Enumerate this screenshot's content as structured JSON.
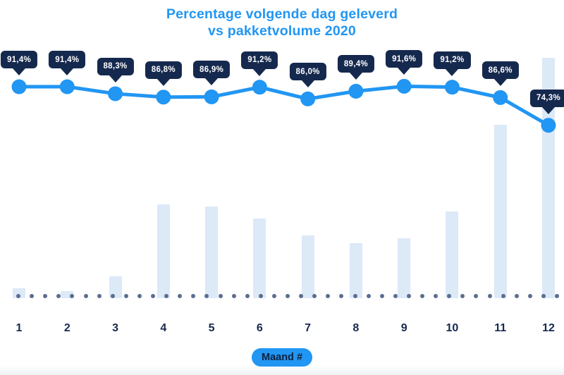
{
  "page": {
    "title_line1": "Percentage volgende dag geleverd",
    "title_line2": "vs pakketvolume 2020"
  },
  "x_axis": {
    "badge_label": "Maand #",
    "tick_labels": [
      "1",
      "2",
      "3",
      "4",
      "5",
      "6",
      "7",
      "8",
      "9",
      "10",
      "11",
      "12"
    ]
  },
  "chart_data": {
    "type": "line+bar combo",
    "title": "Percentage volgende dag geleverd vs pakketvolume 2020",
    "xlabel": "Maand #",
    "categories": [
      1,
      2,
      3,
      4,
      5,
      6,
      7,
      8,
      9,
      10,
      11,
      12
    ],
    "legend": "none",
    "grid": "none",
    "series": [
      {
        "name": "Percentage volgende dag geleverd",
        "type": "line",
        "unit": "%",
        "values": [
          91.4,
          91.4,
          88.3,
          86.8,
          86.9,
          91.2,
          86.0,
          89.4,
          91.6,
          91.2,
          86.6,
          74.3
        ],
        "point_labels": [
          "91,4%",
          "91,4%",
          "88,3%",
          "86,8%",
          "86,9%",
          "91,2%",
          "86,0%",
          "89,4%",
          "91,6%",
          "91,2%",
          "86,6%",
          "74,3%"
        ]
      },
      {
        "name": "Pakketvolume 2020",
        "type": "bar",
        "unit": "relative volume, max month = 100",
        "values": [
          4,
          3,
          9,
          39,
          38,
          33,
          26,
          23,
          25,
          36,
          72,
          100
        ]
      }
    ],
    "colors": {
      "line": "#2196F3",
      "marker": "#2196F3",
      "bar": "#DCE9F7",
      "tooltip_bg": "#15294E",
      "tooltip_text": "#FFFFFF",
      "axis_label": "#15294E",
      "dotted_baseline": "#5B6E91",
      "title": "#2196F3",
      "badge_bg": "#2196F3",
      "badge_text": "#0D2240"
    }
  }
}
